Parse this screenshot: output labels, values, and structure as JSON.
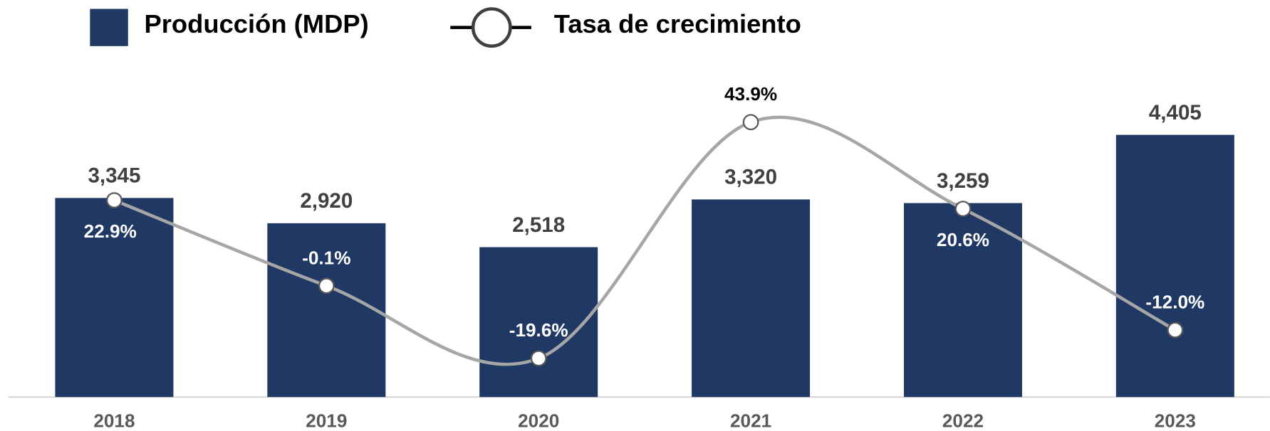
{
  "chart_data": {
    "type": "bar+line",
    "categories": [
      "2018",
      "2019",
      "2020",
      "2021",
      "2022",
      "2023"
    ],
    "series": [
      {
        "name": "Producción (MDP)",
        "type": "bar",
        "color": "#1f3864",
        "values": [
          3345,
          2920,
          2518,
          3320,
          3259,
          4405
        ],
        "value_labels": [
          "3,345",
          "2,920",
          "2,518",
          "3,320",
          "3,259",
          "4,405"
        ]
      },
      {
        "name": "Tasa de crecimiento",
        "type": "line",
        "axis": "y2",
        "color": "#a6a6a6",
        "values": [
          22.9,
          -0.1,
          -19.6,
          43.9,
          20.6,
          -12.0
        ],
        "value_labels": [
          "22.9%",
          "-0.1%",
          "-19.6%",
          "43.9%",
          "20.6%",
          "-12.0%"
        ]
      }
    ],
    "ylim": [
      0,
      5000
    ],
    "y2lim": [
      -30,
      50
    ],
    "legend": "top-left"
  }
}
